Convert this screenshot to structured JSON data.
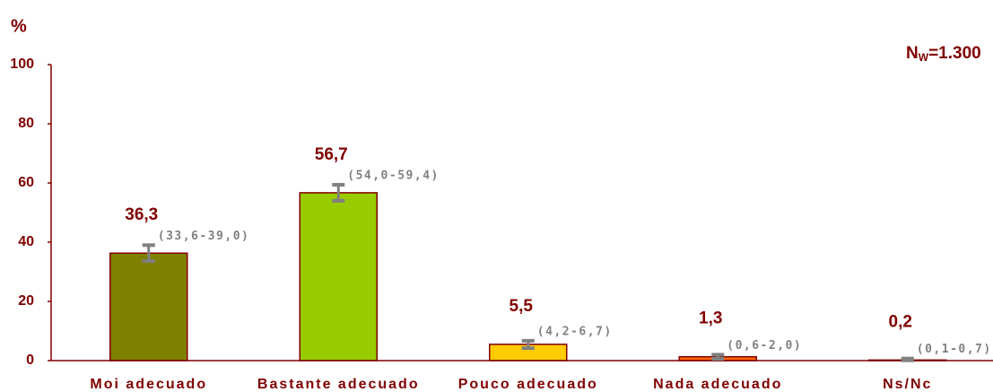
{
  "chart_data": {
    "type": "bar",
    "y_label": "%",
    "annotation": {
      "main": "N",
      "sub": "W",
      "rest": "=1.300"
    },
    "categories": [
      "Moi adecuado",
      "Bastante adecuado",
      "Pouco adecuado",
      "Nada adecuado",
      "Ns/Nc"
    ],
    "values": [
      36.3,
      56.7,
      5.5,
      1.3,
      0.2
    ],
    "value_labels": [
      "36,3",
      "56,7",
      "5,5",
      "1,3",
      "0,2"
    ],
    "ci_low": [
      33.6,
      54.0,
      4.2,
      0.6,
      0.1
    ],
    "ci_high": [
      39.0,
      59.4,
      6.7,
      2.0,
      0.7
    ],
    "ci_labels": [
      "(33,6-39,0)",
      "(54,0-59,4)",
      "(4,2-6,7)",
      "(0,6-2,0)",
      "(0,1-0,7)"
    ],
    "colors": [
      "#808000",
      "#99cc00",
      "#ffcc00",
      "#ff6600",
      "#c0c0c0"
    ],
    "ylim": [
      0,
      100
    ],
    "yticks": [
      0,
      20,
      40,
      60,
      80,
      100
    ]
  }
}
